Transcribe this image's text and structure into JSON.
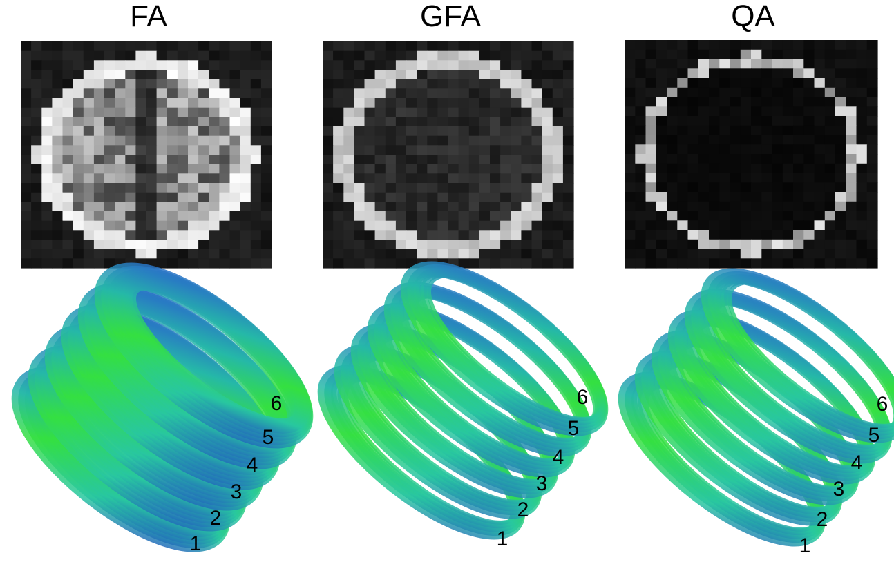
{
  "panels": [
    {
      "title": "FA",
      "labels": [
        "1",
        "2",
        "3",
        "4",
        "5",
        "6"
      ]
    },
    {
      "title": "GFA",
      "labels": [
        "1",
        "2",
        "3",
        "4",
        "5",
        "6"
      ]
    },
    {
      "title": "QA",
      "labels": [
        "1",
        "2",
        "3",
        "4",
        "5",
        "6"
      ]
    }
  ]
}
